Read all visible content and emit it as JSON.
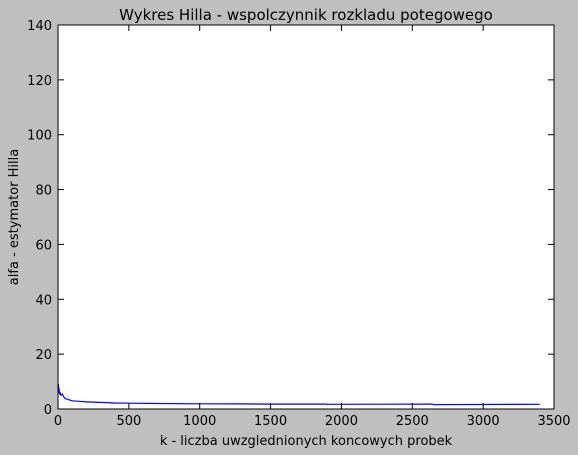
{
  "chart_data": {
    "type": "line",
    "title": "Wykres Hilla - wspolczynnik rozkladu potegowego",
    "xlabel": "k - liczba uwzglednionych koncowych probek",
    "ylabel": "alfa - estymator Hilla",
    "xlim": [
      0,
      3500
    ],
    "ylim": [
      0,
      140
    ],
    "xticks": [
      0,
      500,
      1000,
      1500,
      2000,
      2500,
      3000,
      3500
    ],
    "yticks": [
      0,
      20,
      40,
      60,
      80,
      100,
      120,
      140
    ],
    "grid": false,
    "colors": {
      "figure_bg": "#bfbfbf",
      "plot_bg": "#ffffff",
      "line": "#0000ff"
    },
    "series": [
      {
        "color": "#0000ff",
        "x": [
          1,
          3,
          5,
          8,
          10,
          15,
          20,
          30,
          40,
          50,
          70,
          100,
          150,
          200,
          300,
          400,
          500,
          700,
          1000,
          1300,
          1500,
          1890,
          1900,
          2300,
          2640,
          2650,
          3000,
          3400
        ],
        "y": [
          6.5,
          9.0,
          6.0,
          7.5,
          5.5,
          6.0,
          5.0,
          5.5,
          4.5,
          3.8,
          3.5,
          3.0,
          2.8,
          2.6,
          2.4,
          2.2,
          2.1,
          2.0,
          1.9,
          1.85,
          1.8,
          1.8,
          1.7,
          1.75,
          1.8,
          1.6,
          1.65,
          1.7
        ]
      }
    ]
  }
}
